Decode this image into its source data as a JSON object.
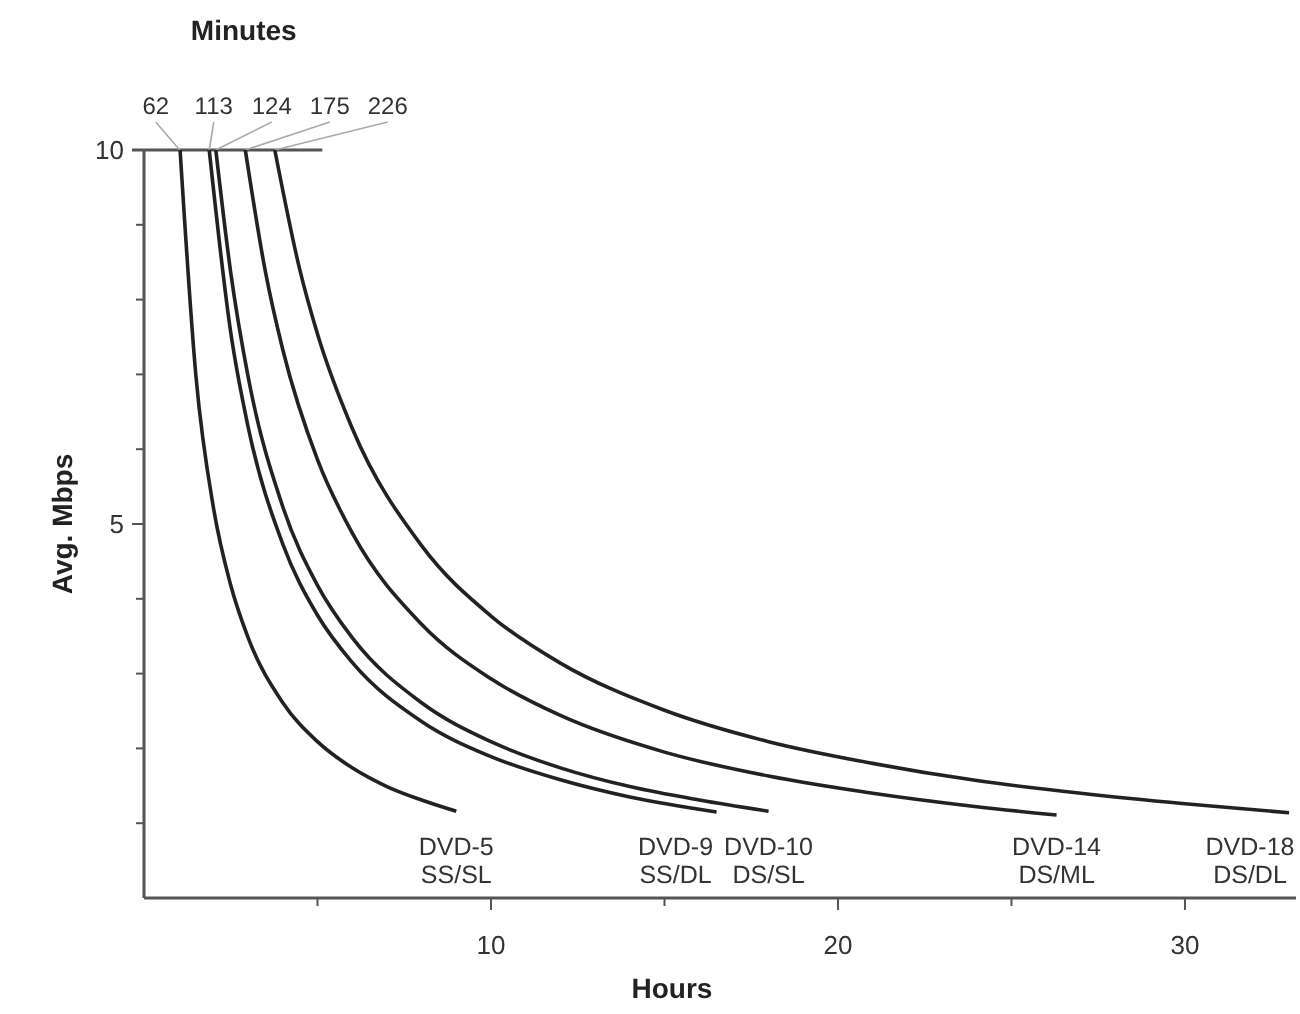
{
  "chart_data": {
    "type": "line",
    "xlabel": "Hours",
    "ylabel": "Avg. Mbps",
    "xlim": [
      0,
      33.2
    ],
    "ylim": [
      0,
      10
    ],
    "xticks": [
      {
        "value": 5,
        "label": null
      },
      10,
      {
        "value": 15,
        "label": null
      },
      20,
      {
        "value": 25,
        "label": null
      },
      30
    ],
    "yticks": [
      {
        "value": 1,
        "label": null
      },
      {
        "value": 2,
        "label": null
      },
      {
        "value": 3,
        "label": null
      },
      {
        "value": 4,
        "label": null
      },
      5,
      {
        "value": 6,
        "label": null
      },
      {
        "value": 7,
        "label": null
      },
      {
        "value": 8,
        "label": null
      },
      {
        "value": 9,
        "label": null
      },
      10
    ],
    "annotations": [
      "Minutes",
      {
        "text": "62",
        "x": 1.03,
        "y": 10
      },
      {
        "text": "113",
        "x": 1.88,
        "y": 10
      },
      {
        "text": "124",
        "x": 2.07,
        "y": 10
      },
      {
        "text": "175",
        "x": 2.92,
        "y": 10
      },
      {
        "text": "226",
        "x": 3.77,
        "y": 10
      }
    ],
    "grid": false,
    "marker": "none",
    "line_style": "solid",
    "series": [
      {
        "name": "DVD-5 SS/SL",
        "color": "#222222",
        "x": [
          1.04,
          1.5,
          2,
          2.5,
          3,
          4,
          5,
          6,
          7,
          8,
          9
        ],
        "values": [
          10,
          6.96,
          5.22,
          4.18,
          3.48,
          2.61,
          2.09,
          1.74,
          1.49,
          1.31,
          1.16
        ]
      },
      {
        "name": "DVD-9 SS/DL",
        "color": "#222222",
        "x": [
          1.88,
          2.5,
          3,
          4,
          5,
          6,
          8,
          10,
          12,
          14,
          16.5
        ],
        "values": [
          10,
          7.56,
          6.3,
          4.73,
          3.78,
          3.15,
          2.36,
          1.89,
          1.58,
          1.35,
          1.15
        ]
      },
      {
        "name": "DVD-10 DS/SL",
        "color": "#222222",
        "x": [
          2.07,
          2.5,
          3,
          4,
          5,
          6,
          8,
          10,
          12,
          14,
          16,
          18
        ],
        "values": [
          10,
          8.36,
          6.97,
          5.23,
          4.18,
          3.48,
          2.61,
          2.09,
          1.74,
          1.49,
          1.31,
          1.16
        ]
      },
      {
        "name": "DVD-14 DS/ML",
        "color": "#222222",
        "x": [
          2.92,
          3.5,
          4,
          5,
          6,
          8,
          10,
          12,
          15,
          18,
          21,
          24,
          26.3
        ],
        "values": [
          10,
          8.37,
          7.33,
          5.86,
          4.88,
          3.66,
          2.93,
          2.44,
          1.95,
          1.63,
          1.4,
          1.22,
          1.11
        ]
      },
      {
        "name": "DVD-18 DS/DL",
        "color": "#222222",
        "x": [
          3.77,
          4.5,
          5,
          6,
          8,
          10,
          12,
          15,
          18,
          21,
          24,
          27,
          30,
          33
        ],
        "values": [
          10,
          8.38,
          7.54,
          6.28,
          4.71,
          3.77,
          3.14,
          2.51,
          2.09,
          1.8,
          1.57,
          1.4,
          1.26,
          1.14
        ]
      }
    ]
  }
}
